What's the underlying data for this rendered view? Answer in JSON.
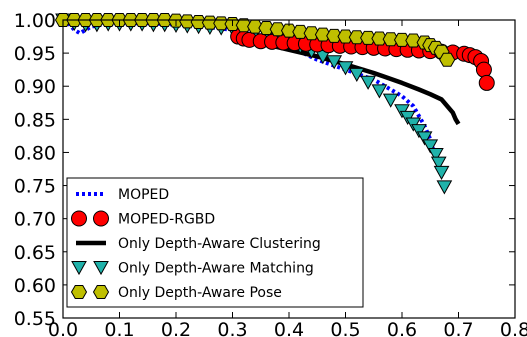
{
  "chart_data": {
    "type": "line",
    "title": "",
    "xlabel": "",
    "ylabel": "",
    "xlim": [
      0.0,
      0.8
    ],
    "ylim": [
      0.55,
      1.0
    ],
    "x_ticks": [
      0.0,
      0.1,
      0.2,
      0.3,
      0.4,
      0.5,
      0.6,
      0.7,
      0.8
    ],
    "x_tick_labels": [
      "0.0",
      "0.1",
      "0.2",
      "0.3",
      "0.4",
      "0.5",
      "0.6",
      "0.7",
      "0.8"
    ],
    "y_ticks": [
      0.55,
      0.6,
      0.65,
      0.7,
      0.75,
      0.8,
      0.85,
      0.9,
      0.95,
      1.0
    ],
    "y_tick_labels": [
      "0.55",
      "0.60",
      "0.65",
      "0.70",
      "0.75",
      "0.80",
      "0.85",
      "0.90",
      "0.95",
      "1.00"
    ],
    "grid": false,
    "legend_position": "lower-left",
    "series": [
      {
        "name": "MOPED",
        "style": "dotted-line",
        "color": "#0000ff",
        "x": [
          0.0,
          0.01,
          0.02,
          0.03,
          0.04,
          0.05,
          0.07,
          0.1,
          0.15,
          0.2,
          0.25,
          0.3,
          0.35,
          0.4,
          0.45,
          0.5,
          0.55,
          0.58,
          0.6,
          0.62,
          0.63,
          0.64,
          0.65,
          0.66
        ],
        "y": [
          1.0,
          0.995,
          0.985,
          0.98,
          0.985,
          0.99,
          0.993,
          0.995,
          0.995,
          0.993,
          0.99,
          0.985,
          0.975,
          0.96,
          0.94,
          0.925,
          0.91,
          0.895,
          0.885,
          0.87,
          0.855,
          0.84,
          0.82,
          0.79
        ]
      },
      {
        "name": "MOPED-RGBD",
        "style": "circle-marker",
        "color": "#ff0000",
        "x": [
          0.31,
          0.32,
          0.33,
          0.35,
          0.37,
          0.39,
          0.41,
          0.43,
          0.45,
          0.47,
          0.49,
          0.51,
          0.53,
          0.55,
          0.57,
          0.59,
          0.61,
          0.63,
          0.65,
          0.67,
          0.69,
          0.71,
          0.72,
          0.73,
          0.74,
          0.745,
          0.75
        ],
        "y": [
          0.975,
          0.972,
          0.97,
          0.968,
          0.967,
          0.966,
          0.965,
          0.964,
          0.963,
          0.962,
          0.961,
          0.96,
          0.959,
          0.958,
          0.957,
          0.956,
          0.955,
          0.954,
          0.953,
          0.952,
          0.951,
          0.949,
          0.947,
          0.944,
          0.938,
          0.925,
          0.905
        ]
      },
      {
        "name": "Only Depth-Aware Clustering",
        "style": "thick-line",
        "color": "#000000",
        "x": [
          0.35,
          0.4,
          0.45,
          0.5,
          0.55,
          0.6,
          0.63,
          0.65,
          0.67,
          0.68,
          0.69,
          0.695,
          0.7
        ],
        "y": [
          0.965,
          0.955,
          0.945,
          0.933,
          0.92,
          0.905,
          0.895,
          0.888,
          0.88,
          0.87,
          0.86,
          0.85,
          0.843
        ]
      },
      {
        "name": "Only Depth-Aware Matching",
        "style": "triangle-marker",
        "color": "#20b2aa",
        "x": [
          0.0,
          0.02,
          0.04,
          0.06,
          0.08,
          0.1,
          0.12,
          0.14,
          0.16,
          0.18,
          0.2,
          0.22,
          0.24,
          0.26,
          0.28,
          0.3,
          0.32,
          0.34,
          0.36,
          0.38,
          0.4,
          0.42,
          0.44,
          0.46,
          0.48,
          0.5,
          0.52,
          0.54,
          0.56,
          0.58,
          0.6,
          0.61,
          0.62,
          0.63,
          0.64,
          0.65,
          0.66,
          0.665,
          0.67,
          0.675
        ],
        "y": [
          1.0,
          0.995,
          0.993,
          0.993,
          0.994,
          0.994,
          0.994,
          0.994,
          0.993,
          0.993,
          0.992,
          0.991,
          0.99,
          0.989,
          0.988,
          0.987,
          0.985,
          0.982,
          0.978,
          0.973,
          0.967,
          0.96,
          0.953,
          0.945,
          0.937,
          0.928,
          0.918,
          0.906,
          0.893,
          0.879,
          0.863,
          0.853,
          0.843,
          0.833,
          0.822,
          0.81,
          0.797,
          0.784,
          0.77,
          0.748
        ]
      },
      {
        "name": "Only Depth-Aware Pose",
        "style": "hexagon-marker",
        "color": "#bfbf00",
        "x": [
          0.0,
          0.02,
          0.04,
          0.06,
          0.08,
          0.1,
          0.12,
          0.14,
          0.16,
          0.18,
          0.2,
          0.22,
          0.24,
          0.26,
          0.28,
          0.3,
          0.32,
          0.34,
          0.36,
          0.38,
          0.4,
          0.42,
          0.44,
          0.46,
          0.48,
          0.5,
          0.52,
          0.54,
          0.56,
          0.58,
          0.6,
          0.62,
          0.64,
          0.65,
          0.66,
          0.67,
          0.68
        ],
        "y": [
          1.0,
          1.0,
          1.0,
          1.0,
          1.0,
          1.0,
          1.0,
          1.0,
          1.0,
          1.0,
          0.999,
          0.998,
          0.997,
          0.996,
          0.995,
          0.994,
          0.992,
          0.99,
          0.988,
          0.986,
          0.984,
          0.982,
          0.98,
          0.978,
          0.976,
          0.975,
          0.974,
          0.973,
          0.972,
          0.971,
          0.97,
          0.969,
          0.966,
          0.962,
          0.958,
          0.952,
          0.94
        ]
      }
    ]
  }
}
